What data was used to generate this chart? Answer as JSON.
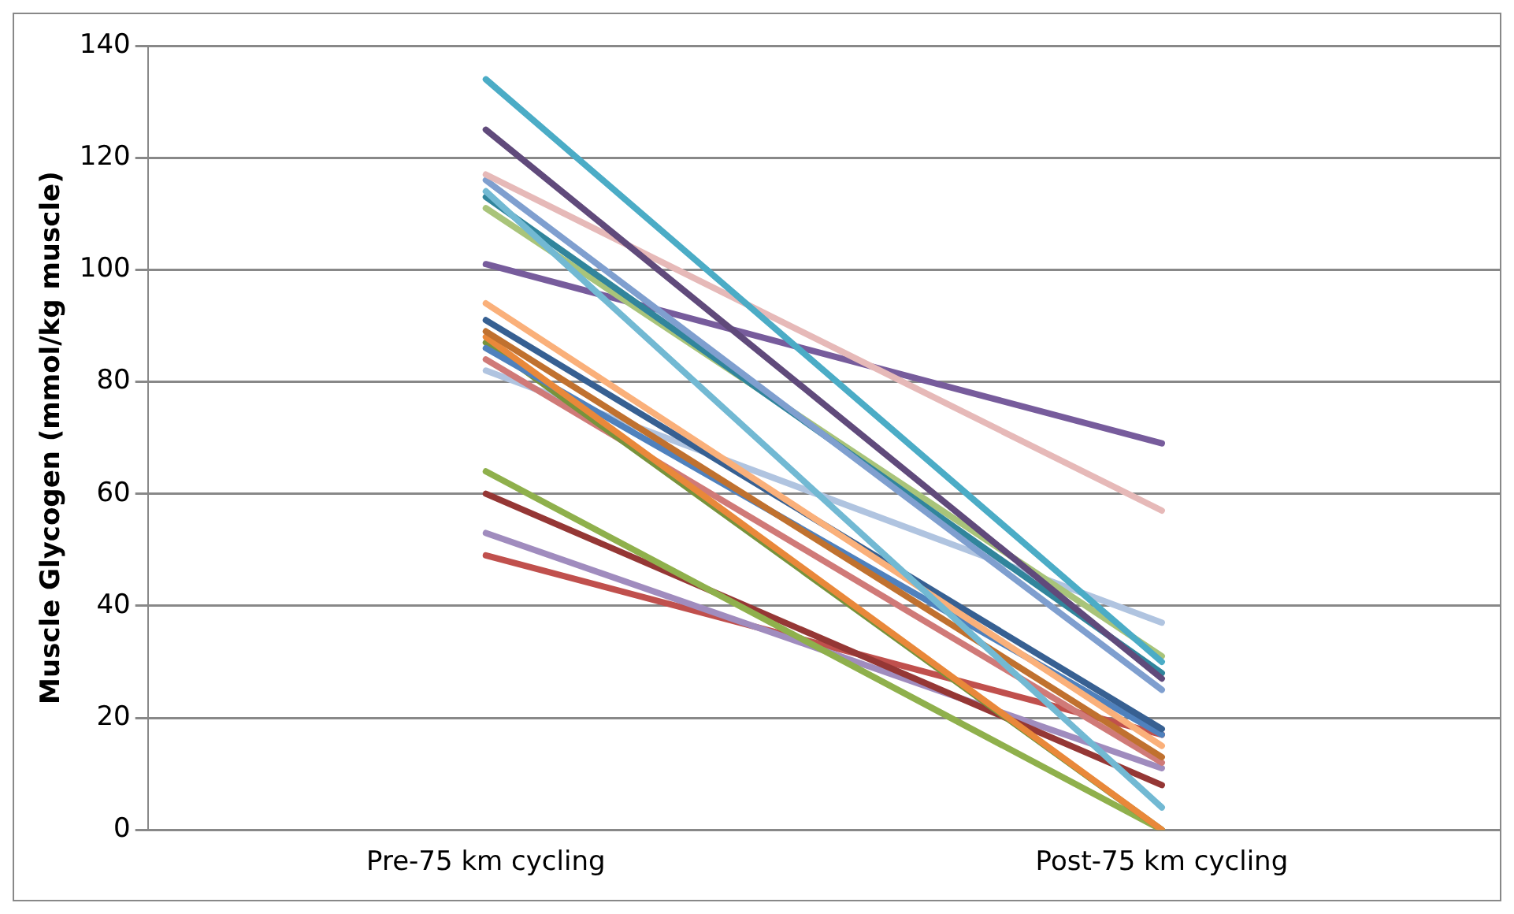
{
  "chart_data": {
    "type": "line",
    "ylabel": "Muscle Glycogen (mmol/kg muscle)",
    "categories": [
      "Pre-75 km cycling",
      "Post-75 km cycling"
    ],
    "ylim": [
      0,
      140
    ],
    "yticks": [
      0,
      20,
      40,
      60,
      80,
      100,
      120,
      140
    ],
    "grid": "y",
    "legend": false,
    "marker": "none",
    "line_style": "solid",
    "series": [
      {
        "color": "#4bacc6",
        "values": [
          134,
          30
        ]
      },
      {
        "color": "#604a7b",
        "values": [
          125,
          27
        ]
      },
      {
        "color": "#e6b9b8",
        "values": [
          117,
          57
        ]
      },
      {
        "color": "#7f9fcf",
        "values": [
          116,
          25
        ]
      },
      {
        "color": "#72b9d3",
        "values": [
          114,
          4
        ]
      },
      {
        "color": "#31859c",
        "values": [
          113,
          28
        ]
      },
      {
        "color": "#a9c47a",
        "values": [
          111,
          31
        ]
      },
      {
        "color": "#775c9c",
        "values": [
          101,
          69
        ]
      },
      {
        "color": "#fab07a",
        "values": [
          94,
          15
        ]
      },
      {
        "color": "#376092",
        "values": [
          91,
          18
        ]
      },
      {
        "color": "#c0712f",
        "values": [
          89,
          13
        ]
      },
      {
        "color": "#e9883a",
        "values": [
          88,
          0
        ]
      },
      {
        "color": "#4f81bd",
        "values": [
          86,
          17
        ]
      },
      {
        "color": "#77933c",
        "values": [
          87,
          0
        ]
      },
      {
        "color": "#d07a78",
        "values": [
          84,
          12
        ]
      },
      {
        "color": "#b0c4e0",
        "values": [
          82,
          37
        ]
      },
      {
        "color": "#8fb04c",
        "values": [
          64,
          0
        ]
      },
      {
        "color": "#953735",
        "values": [
          60,
          8
        ]
      },
      {
        "color": "#a08cbe",
        "values": [
          53,
          11
        ]
      },
      {
        "color": "#c0504d",
        "values": [
          49,
          17
        ]
      }
    ]
  }
}
